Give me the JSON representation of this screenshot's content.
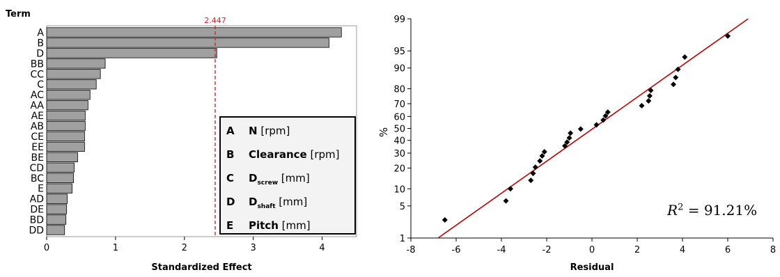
{
  "chart_data": [
    {
      "type": "bar",
      "orientation": "horizontal",
      "ylabel": "Term",
      "xlabel": "Standardized Effect",
      "categories": [
        "A",
        "B",
        "D",
        "BB",
        "CC",
        "C",
        "AC",
        "AA",
        "AE",
        "AB",
        "CE",
        "EE",
        "BE",
        "CD",
        "BC",
        "E",
        "AD",
        "DE",
        "BD",
        "DD"
      ],
      "values": [
        4.28,
        4.1,
        2.47,
        0.85,
        0.78,
        0.72,
        0.63,
        0.6,
        0.56,
        0.56,
        0.55,
        0.55,
        0.45,
        0.4,
        0.39,
        0.37,
        0.3,
        0.29,
        0.28,
        0.26
      ],
      "xlim": [
        0,
        4.5
      ],
      "xticks": [
        0,
        1,
        2,
        3,
        4
      ],
      "reference_value": 2.447,
      "reference_label": "2.447",
      "bar_color": "#a0a0a0",
      "reference_color": "#d62728",
      "legend": [
        {
          "code": "A",
          "name": "N",
          "sub": "",
          "unit": "[rpm]"
        },
        {
          "code": "B",
          "name": "Clearance",
          "sub": "",
          "unit": "[rpm]"
        },
        {
          "code": "C",
          "name": "D",
          "sub": "screw",
          "unit": "[mm]"
        },
        {
          "code": "D",
          "name": "D",
          "sub": "shaft",
          "unit": "[mm]"
        },
        {
          "code": "E",
          "name": "Pitch",
          "sub": "",
          "unit": "[mm]"
        }
      ]
    },
    {
      "type": "scatter",
      "scale_y": "normal-probability",
      "ylabel": "%",
      "xlabel": "Residual",
      "xlim": [
        -8,
        8
      ],
      "xticks": [
        -8,
        -6,
        -4,
        -2,
        0,
        2,
        4,
        6,
        8
      ],
      "yticks": [
        1,
        5,
        10,
        20,
        30,
        40,
        50,
        60,
        70,
        80,
        90,
        95,
        99
      ],
      "points": [
        {
          "x": -6.5,
          "y": 2.6
        },
        {
          "x": -3.8,
          "y": 6.2
        },
        {
          "x": -3.6,
          "y": 10
        },
        {
          "x": -2.7,
          "y": 13.5
        },
        {
          "x": -2.6,
          "y": 17
        },
        {
          "x": -2.5,
          "y": 20.5
        },
        {
          "x": -2.3,
          "y": 24.5
        },
        {
          "x": -2.2,
          "y": 28
        },
        {
          "x": -2.1,
          "y": 31
        },
        {
          "x": -1.2,
          "y": 35.5
        },
        {
          "x": -1.1,
          "y": 38.5
        },
        {
          "x": -1.0,
          "y": 42
        },
        {
          "x": -0.95,
          "y": 46
        },
        {
          "x": -0.5,
          "y": 49.5
        },
        {
          "x": 0.2,
          "y": 53
        },
        {
          "x": 0.5,
          "y": 57
        },
        {
          "x": 0.6,
          "y": 60.5
        },
        {
          "x": 0.7,
          "y": 63.5
        },
        {
          "x": 2.2,
          "y": 68.5
        },
        {
          "x": 2.5,
          "y": 72
        },
        {
          "x": 2.55,
          "y": 75.5
        },
        {
          "x": 2.6,
          "y": 79
        },
        {
          "x": 3.6,
          "y": 82.5
        },
        {
          "x": 3.7,
          "y": 86
        },
        {
          "x": 3.8,
          "y": 89.5
        },
        {
          "x": 4.1,
          "y": 93.5
        },
        {
          "x": 6.0,
          "y": 97.5
        }
      ],
      "fit_line": {
        "x": [
          -6.8,
          6.9
        ],
        "y": [
          1,
          99
        ]
      },
      "point_color": "#000000",
      "line_color": "#c00000",
      "annotation": {
        "lhs": "R",
        "power": "2",
        "rhs": "= 91.21%"
      }
    }
  ]
}
